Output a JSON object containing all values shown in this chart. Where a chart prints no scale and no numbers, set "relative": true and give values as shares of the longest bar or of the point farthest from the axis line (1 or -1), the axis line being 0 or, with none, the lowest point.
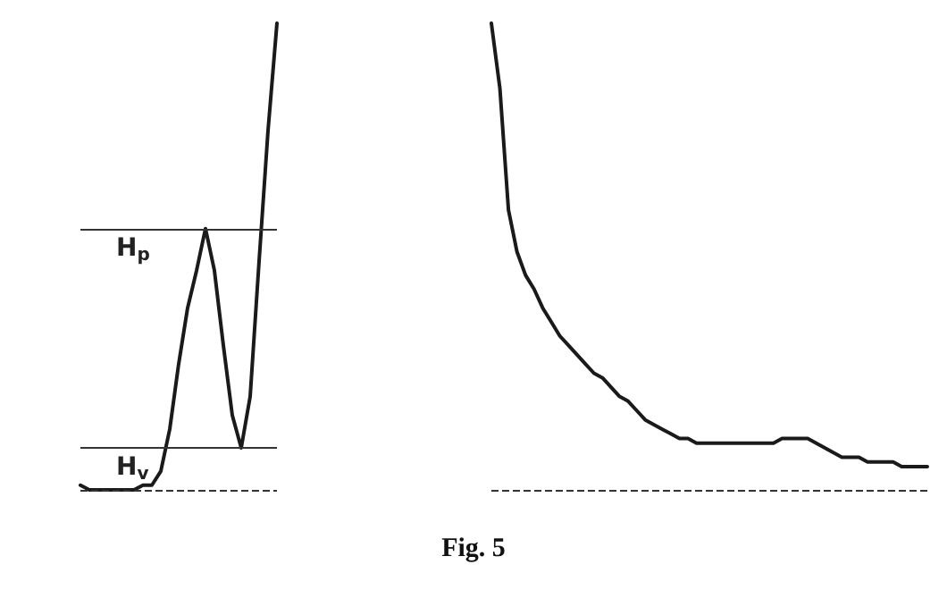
{
  "chart_data": [
    {
      "type": "line",
      "relative": true,
      "grid": false,
      "line_style": "solid",
      "categories": [
        null,
        null,
        null,
        null,
        null,
        null,
        null,
        null,
        null,
        null,
        null,
        null,
        null,
        null,
        null,
        null,
        null,
        null,
        null,
        null,
        null,
        null,
        null
      ],
      "series": [
        {
          "color": "#1a1a1a",
          "values": [
            0.01,
            0,
            0,
            0,
            0,
            0,
            0,
            0.01,
            0.01,
            0.04,
            0.13,
            0.27,
            0.39,
            0.47,
            0.56,
            0.47,
            0.31,
            0.16,
            0.09,
            0.2,
            0.49,
            0.77,
            1.0
          ]
        }
      ],
      "ref_lines": [
        {
          "axis": "y",
          "value": 0.56,
          "label": "H$_{p}$",
          "color": "#333333",
          "line_style": "solid"
        },
        {
          "axis": "y",
          "value": 0.09,
          "label": "H$_{v}$",
          "color": "#333333",
          "line_style": "solid"
        },
        {
          "axis": "y",
          "value": 0,
          "label": null,
          "color": "#333333",
          "line_style": "dashed"
        }
      ]
    },
    {
      "type": "line",
      "relative": true,
      "grid": false,
      "line_style": "solid",
      "categories": [
        null,
        null,
        null,
        null,
        null,
        null,
        null,
        null,
        null,
        null,
        null,
        null,
        null,
        null,
        null,
        null,
        null,
        null,
        null,
        null,
        null,
        null,
        null,
        null,
        null,
        null,
        null,
        null,
        null,
        null,
        null,
        null,
        null,
        null,
        null,
        null,
        null,
        null,
        null,
        null,
        null,
        null,
        null,
        null,
        null,
        null,
        null,
        null,
        null,
        null,
        null,
        null
      ],
      "series": [
        {
          "color": "#1a1a1a",
          "values": [
            1.0,
            0.86,
            0.6,
            0.51,
            0.46,
            0.43,
            0.39,
            0.36,
            0.33,
            0.31,
            0.29,
            0.27,
            0.25,
            0.24,
            0.22,
            0.2,
            0.19,
            0.17,
            0.15,
            0.14,
            0.13,
            0.12,
            0.11,
            0.11,
            0.1,
            0.1,
            0.1,
            0.1,
            0.1,
            0.1,
            0.1,
            0.1,
            0.1,
            0.1,
            0.11,
            0.11,
            0.11,
            0.11,
            0.1,
            0.09,
            0.08,
            0.07,
            0.07,
            0.07,
            0.06,
            0.06,
            0.06,
            0.06,
            0.05,
            0.05,
            0.05,
            0.05
          ]
        }
      ],
      "ref_lines": [
        {
          "axis": "y",
          "value": 0,
          "label": null,
          "color": "#333333",
          "line_style": "dashed"
        }
      ]
    },
    {
      "type": "other",
      "title": "Fig. 5"
    }
  ]
}
